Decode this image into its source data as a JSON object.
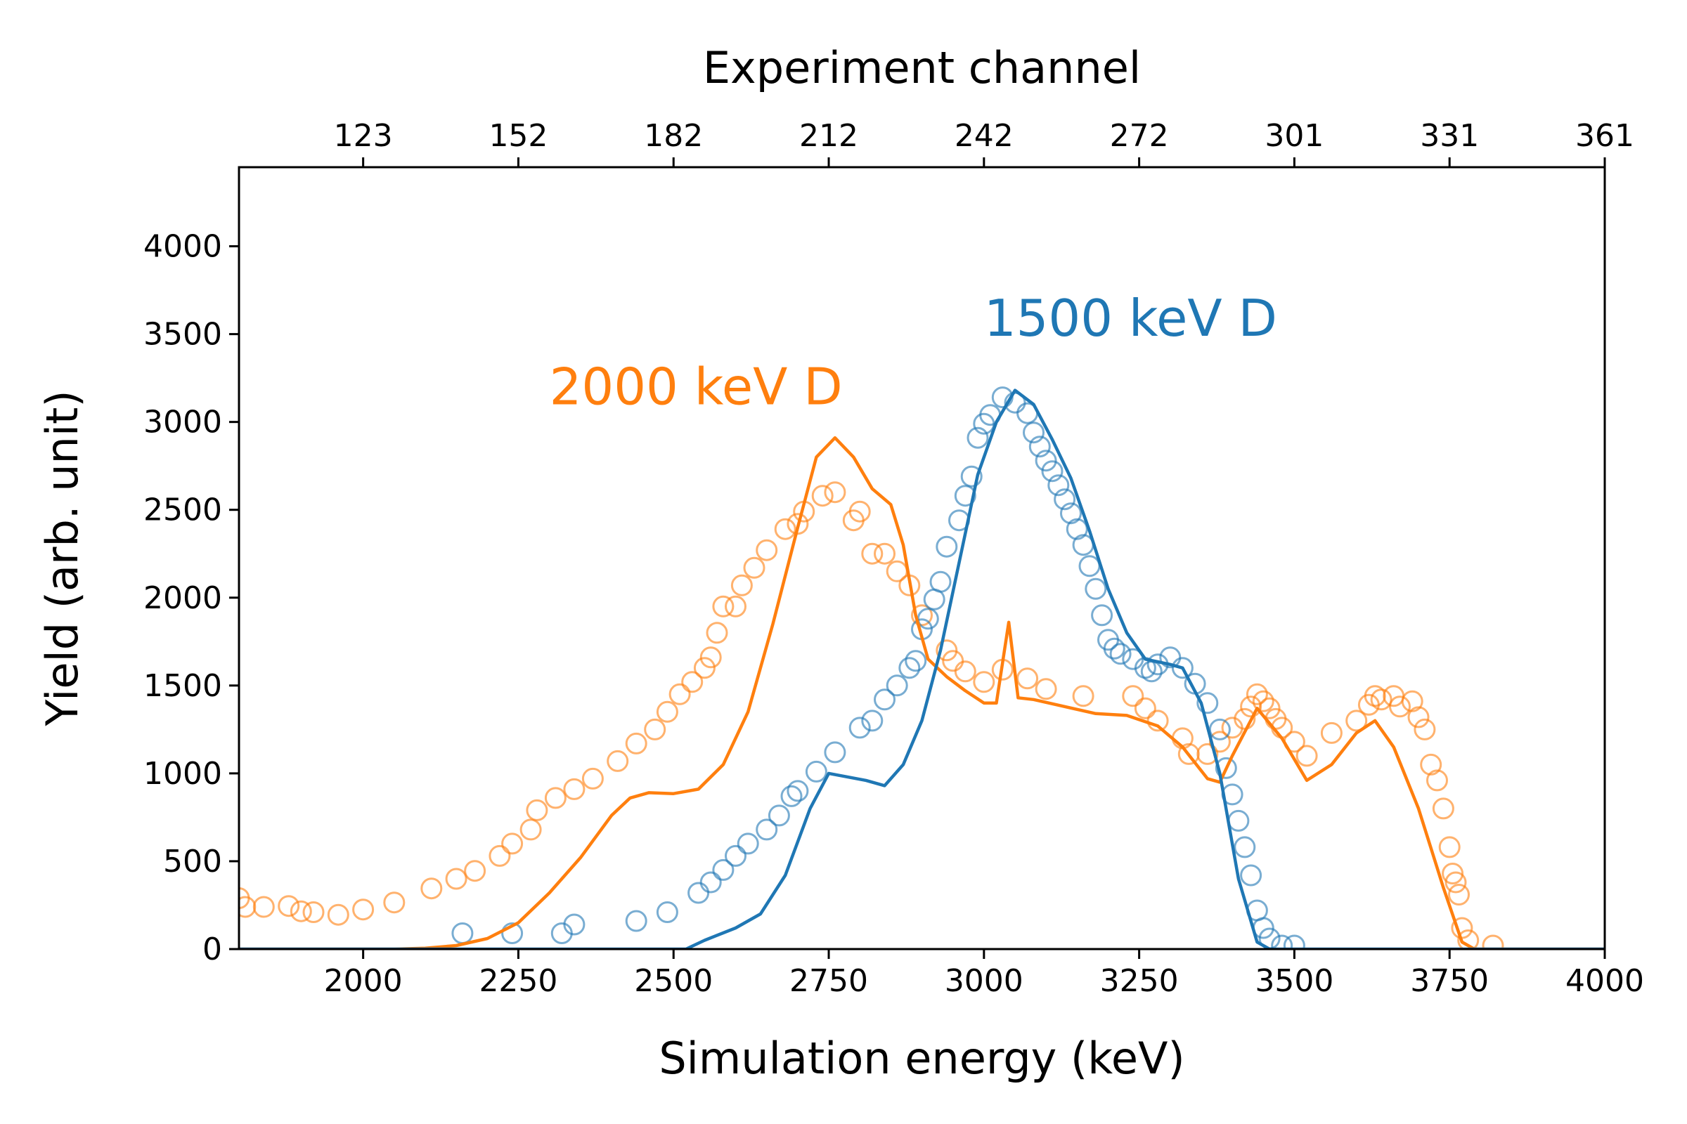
{
  "chart_data": {
    "type": "line",
    "title": "",
    "xlabel": "Simulation energy (keV)",
    "x2label": "Experiment channel",
    "ylabel": "Yield (arb. unit)",
    "xlim": [
      1800,
      4000
    ],
    "ylim": [
      0,
      4450
    ],
    "xticks": [
      2000,
      2250,
      2500,
      2750,
      3000,
      3250,
      3500,
      3750,
      4000
    ],
    "yticks": [
      0,
      500,
      1000,
      1500,
      2000,
      2500,
      3000,
      3500,
      4000
    ],
    "x2ticks": [
      {
        "value": 2000,
        "label": "123"
      },
      {
        "value": 2250,
        "label": "152"
      },
      {
        "value": 2500,
        "label": "182"
      },
      {
        "value": 2750,
        "label": "212"
      },
      {
        "value": 3000,
        "label": "242"
      },
      {
        "value": 3250,
        "label": "272"
      },
      {
        "value": 3500,
        "label": "301"
      },
      {
        "value": 3750,
        "label": "331"
      },
      {
        "value": 4000,
        "label": "361"
      }
    ],
    "grid": false,
    "annotations": [
      {
        "text": "2000 keV D",
        "series": "2000 keV D",
        "x": 2300,
        "y": 3100
      },
      {
        "text": "1500 keV D",
        "series": "1500 keV D",
        "x": 3000,
        "y": 3490
      }
    ],
    "series": [
      {
        "name": "2000 keV D",
        "color": "#ff7f0e",
        "simulation": [
          [
            1800,
            0
          ],
          [
            2050,
            0
          ],
          [
            2100,
            5
          ],
          [
            2150,
            20
          ],
          [
            2200,
            60
          ],
          [
            2250,
            150
          ],
          [
            2300,
            320
          ],
          [
            2350,
            520
          ],
          [
            2400,
            760
          ],
          [
            2430,
            860
          ],
          [
            2460,
            890
          ],
          [
            2500,
            885
          ],
          [
            2540,
            910
          ],
          [
            2580,
            1050
          ],
          [
            2620,
            1350
          ],
          [
            2660,
            1850
          ],
          [
            2700,
            2400
          ],
          [
            2730,
            2800
          ],
          [
            2760,
            2910
          ],
          [
            2790,
            2800
          ],
          [
            2820,
            2620
          ],
          [
            2850,
            2530
          ],
          [
            2870,
            2300
          ],
          [
            2890,
            1900
          ],
          [
            2910,
            1650
          ],
          [
            2940,
            1550
          ],
          [
            2970,
            1470
          ],
          [
            3000,
            1400
          ],
          [
            3020,
            1400
          ],
          [
            3040,
            1860
          ],
          [
            3055,
            1430
          ],
          [
            3080,
            1420
          ],
          [
            3130,
            1380
          ],
          [
            3180,
            1340
          ],
          [
            3230,
            1330
          ],
          [
            3280,
            1270
          ],
          [
            3320,
            1150
          ],
          [
            3360,
            970
          ],
          [
            3380,
            950
          ],
          [
            3400,
            1100
          ],
          [
            3440,
            1370
          ],
          [
            3480,
            1200
          ],
          [
            3520,
            960
          ],
          [
            3560,
            1050
          ],
          [
            3600,
            1230
          ],
          [
            3630,
            1300
          ],
          [
            3660,
            1150
          ],
          [
            3700,
            800
          ],
          [
            3740,
            350
          ],
          [
            3770,
            40
          ],
          [
            3790,
            0
          ],
          [
            4000,
            0
          ]
        ],
        "experiment": [
          [
            1800,
            290
          ],
          [
            1810,
            240
          ],
          [
            1840,
            240
          ],
          [
            1880,
            245
          ],
          [
            1900,
            215
          ],
          [
            1920,
            210
          ],
          [
            1960,
            195
          ],
          [
            2000,
            225
          ],
          [
            2050,
            265
          ],
          [
            2110,
            345
          ],
          [
            2150,
            400
          ],
          [
            2180,
            445
          ],
          [
            2220,
            530
          ],
          [
            2240,
            600
          ],
          [
            2270,
            680
          ],
          [
            2280,
            790
          ],
          [
            2310,
            860
          ],
          [
            2340,
            910
          ],
          [
            2370,
            970
          ],
          [
            2410,
            1070
          ],
          [
            2440,
            1170
          ],
          [
            2470,
            1250
          ],
          [
            2490,
            1350
          ],
          [
            2510,
            1450
          ],
          [
            2530,
            1520
          ],
          [
            2550,
            1600
          ],
          [
            2560,
            1660
          ],
          [
            2570,
            1800
          ],
          [
            2580,
            1950
          ],
          [
            2600,
            1950
          ],
          [
            2610,
            2070
          ],
          [
            2630,
            2170
          ],
          [
            2650,
            2270
          ],
          [
            2680,
            2390
          ],
          [
            2700,
            2420
          ],
          [
            2710,
            2490
          ],
          [
            2740,
            2580
          ],
          [
            2760,
            2600
          ],
          [
            2790,
            2440
          ],
          [
            2800,
            2490
          ],
          [
            2820,
            2250
          ],
          [
            2840,
            2250
          ],
          [
            2860,
            2150
          ],
          [
            2880,
            2070
          ],
          [
            2900,
            1900
          ],
          [
            2940,
            1700
          ],
          [
            2950,
            1640
          ],
          [
            2970,
            1580
          ],
          [
            3000,
            1520
          ],
          [
            3030,
            1590
          ],
          [
            3070,
            1540
          ],
          [
            3100,
            1480
          ],
          [
            3160,
            1440
          ],
          [
            3240,
            1440
          ],
          [
            3260,
            1370
          ],
          [
            3280,
            1300
          ],
          [
            3320,
            1200
          ],
          [
            3330,
            1110
          ],
          [
            3360,
            1110
          ],
          [
            3380,
            1180
          ],
          [
            3400,
            1260
          ],
          [
            3420,
            1310
          ],
          [
            3430,
            1380
          ],
          [
            3440,
            1450
          ],
          [
            3450,
            1410
          ],
          [
            3460,
            1370
          ],
          [
            3470,
            1310
          ],
          [
            3480,
            1260
          ],
          [
            3500,
            1180
          ],
          [
            3520,
            1100
          ],
          [
            3560,
            1230
          ],
          [
            3600,
            1300
          ],
          [
            3620,
            1390
          ],
          [
            3630,
            1440
          ],
          [
            3640,
            1420
          ],
          [
            3660,
            1440
          ],
          [
            3670,
            1380
          ],
          [
            3690,
            1410
          ],
          [
            3700,
            1320
          ],
          [
            3710,
            1250
          ],
          [
            3720,
            1050
          ],
          [
            3730,
            960
          ],
          [
            3740,
            800
          ],
          [
            3750,
            580
          ],
          [
            3755,
            430
          ],
          [
            3760,
            380
          ],
          [
            3765,
            310
          ],
          [
            3770,
            120
          ],
          [
            3780,
            50
          ],
          [
            3820,
            20
          ]
        ]
      },
      {
        "name": "1500 keV D",
        "color": "#1f77b4",
        "simulation": [
          [
            1800,
            0
          ],
          [
            2520,
            0
          ],
          [
            2550,
            50
          ],
          [
            2600,
            120
          ],
          [
            2640,
            200
          ],
          [
            2680,
            420
          ],
          [
            2720,
            800
          ],
          [
            2750,
            1000
          ],
          [
            2780,
            980
          ],
          [
            2810,
            960
          ],
          [
            2840,
            930
          ],
          [
            2870,
            1050
          ],
          [
            2900,
            1300
          ],
          [
            2930,
            1700
          ],
          [
            2960,
            2200
          ],
          [
            2990,
            2700
          ],
          [
            3020,
            3000
          ],
          [
            3050,
            3180
          ],
          [
            3080,
            3100
          ],
          [
            3110,
            2900
          ],
          [
            3140,
            2680
          ],
          [
            3170,
            2380
          ],
          [
            3200,
            2050
          ],
          [
            3230,
            1800
          ],
          [
            3260,
            1650
          ],
          [
            3300,
            1620
          ],
          [
            3320,
            1600
          ],
          [
            3350,
            1400
          ],
          [
            3380,
            1000
          ],
          [
            3410,
            400
          ],
          [
            3440,
            40
          ],
          [
            3460,
            0
          ],
          [
            4000,
            0
          ]
        ],
        "experiment": [
          [
            2160,
            90
          ],
          [
            2240,
            90
          ],
          [
            2320,
            90
          ],
          [
            2340,
            140
          ],
          [
            2440,
            160
          ],
          [
            2490,
            210
          ],
          [
            2540,
            320
          ],
          [
            2560,
            380
          ],
          [
            2580,
            450
          ],
          [
            2600,
            530
          ],
          [
            2620,
            600
          ],
          [
            2650,
            680
          ],
          [
            2670,
            760
          ],
          [
            2690,
            870
          ],
          [
            2700,
            900
          ],
          [
            2730,
            1010
          ],
          [
            2760,
            1120
          ],
          [
            2800,
            1260
          ],
          [
            2820,
            1300
          ],
          [
            2840,
            1420
          ],
          [
            2860,
            1500
          ],
          [
            2880,
            1600
          ],
          [
            2890,
            1640
          ],
          [
            2900,
            1820
          ],
          [
            2910,
            1880
          ],
          [
            2920,
            1990
          ],
          [
            2930,
            2090
          ],
          [
            2940,
            2290
          ],
          [
            2960,
            2440
          ],
          [
            2970,
            2580
          ],
          [
            2980,
            2690
          ],
          [
            2990,
            2910
          ],
          [
            3000,
            2990
          ],
          [
            3010,
            3040
          ],
          [
            3030,
            3140
          ],
          [
            3050,
            3110
          ],
          [
            3070,
            3050
          ],
          [
            3080,
            2940
          ],
          [
            3090,
            2860
          ],
          [
            3100,
            2780
          ],
          [
            3110,
            2720
          ],
          [
            3120,
            2640
          ],
          [
            3130,
            2560
          ],
          [
            3140,
            2480
          ],
          [
            3150,
            2390
          ],
          [
            3160,
            2300
          ],
          [
            3170,
            2180
          ],
          [
            3180,
            2050
          ],
          [
            3190,
            1900
          ],
          [
            3200,
            1760
          ],
          [
            3210,
            1710
          ],
          [
            3220,
            1680
          ],
          [
            3240,
            1650
          ],
          [
            3260,
            1600
          ],
          [
            3270,
            1580
          ],
          [
            3280,
            1620
          ],
          [
            3300,
            1660
          ],
          [
            3320,
            1600
          ],
          [
            3340,
            1510
          ],
          [
            3360,
            1400
          ],
          [
            3380,
            1250
          ],
          [
            3390,
            1030
          ],
          [
            3400,
            880
          ],
          [
            3410,
            730
          ],
          [
            3420,
            580
          ],
          [
            3430,
            420
          ],
          [
            3440,
            220
          ],
          [
            3450,
            120
          ],
          [
            3460,
            60
          ],
          [
            3480,
            20
          ],
          [
            3500,
            20
          ]
        ]
      }
    ]
  }
}
